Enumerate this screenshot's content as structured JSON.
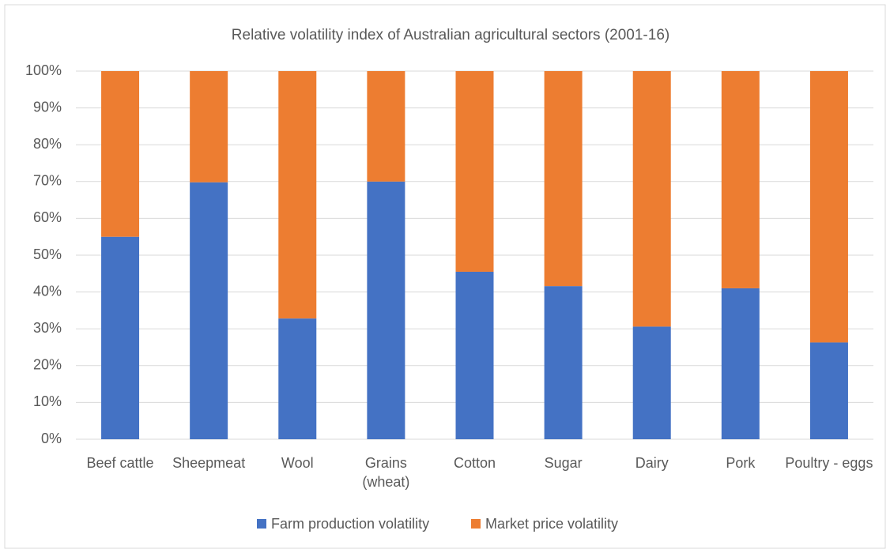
{
  "chart_data": {
    "type": "stacked_bar",
    "title": "Relative volatility index of Australian agricultural sectors (2001-16)",
    "categories": [
      "Beef cattle",
      "Sheepmeat",
      "Wool",
      "Grains (wheat)",
      "Cotton",
      "Sugar",
      "Dairy",
      "Pork",
      "Poultry - eggs"
    ],
    "series": [
      {
        "name": "Farm production volatility",
        "color": "#4472c4",
        "values": [
          55,
          69.8,
          32.8,
          70,
          45.5,
          41.6,
          30.6,
          41,
          26.3
        ]
      },
      {
        "name": "Market price volatility",
        "color": "#ed7d31",
        "values": [
          45,
          30.2,
          67.2,
          30,
          54.5,
          58.4,
          69.4,
          59,
          73.7
        ]
      }
    ],
    "ylim": [
      0,
      100
    ],
    "yticks": [
      {
        "value": 0,
        "label": "0%"
      },
      {
        "value": 10,
        "label": "10%"
      },
      {
        "value": 20,
        "label": "20%"
      },
      {
        "value": 30,
        "label": "30%"
      },
      {
        "value": 40,
        "label": "40%"
      },
      {
        "value": 50,
        "label": "50%"
      },
      {
        "value": 60,
        "label": "60%"
      },
      {
        "value": 70,
        "label": "70%"
      },
      {
        "value": 80,
        "label": "80%"
      },
      {
        "value": 90,
        "label": "90%"
      },
      {
        "value": 100,
        "label": "100%"
      }
    ],
    "grid": true,
    "legend": "bottom"
  }
}
